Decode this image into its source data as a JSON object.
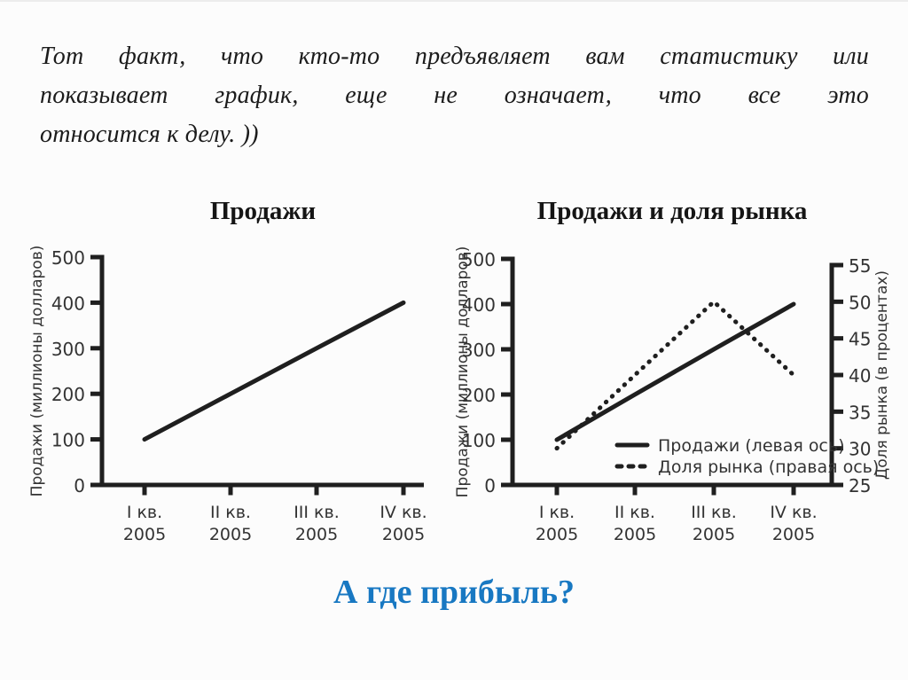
{
  "slide": {
    "quote_lines": [
      "Тот факт, что кто-то предъявляет вам статистику или",
      "показывает график, еще не означает, что все это",
      "относится к делу. ))"
    ],
    "question": "А где прибыль?",
    "colors": {
      "ink": "#1f1f1f",
      "tick_text": "#333333",
      "question_blue": "#1878c2",
      "background": "#fcfcfc"
    }
  },
  "chart_data": [
    {
      "type": "line",
      "title": "Продажи",
      "ylabel_left": "Продажи (миллионы долларов)",
      "x_tick_lines": [
        [
          "I кв.",
          "2005"
        ],
        [
          "II кв.",
          "2005"
        ],
        [
          "III кв.",
          "2005"
        ],
        [
          "IV кв.",
          "2005"
        ]
      ],
      "ylim_left": [
        0,
        500
      ],
      "yticks_left": [
        0,
        100,
        200,
        300,
        400,
        500
      ],
      "grid": false,
      "series": [
        {
          "name": "Продажи",
          "style": "solid",
          "axis": "left",
          "values": [
            100,
            200,
            300,
            400
          ]
        }
      ]
    },
    {
      "type": "line",
      "title": "Продажи и доля рынка",
      "ylabel_left": "Продажи (миллионы долларов)",
      "ylabel_right": "Доля рынка (в процентах)",
      "x_tick_lines": [
        [
          "I кв.",
          "2005"
        ],
        [
          "II кв.",
          "2005"
        ],
        [
          "III кв.",
          "2005"
        ],
        [
          "IV кв.",
          "2005"
        ]
      ],
      "ylim_left": [
        0,
        500
      ],
      "yticks_left": [
        0,
        100,
        200,
        300,
        400,
        500
      ],
      "ylim_right": [
        25,
        55
      ],
      "yticks_right": [
        25,
        30,
        35,
        40,
        45,
        50,
        55
      ],
      "grid": false,
      "legend_position": "inside-bottom-right",
      "series": [
        {
          "name": "Продажи (левая ось)",
          "style": "solid",
          "axis": "left",
          "values": [
            100,
            200,
            300,
            400
          ]
        },
        {
          "name": "Доля рынка (правая ось)",
          "style": "dotted",
          "axis": "right",
          "values": [
            30,
            40,
            50,
            40
          ]
        }
      ]
    }
  ]
}
